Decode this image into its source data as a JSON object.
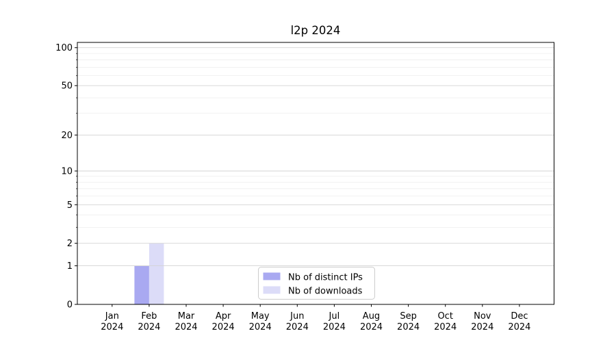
{
  "chart_data": {
    "type": "bar",
    "title": "l2p 2024",
    "months": [
      "Jan",
      "Feb",
      "Mar",
      "Apr",
      "May",
      "Jun",
      "Jul",
      "Aug",
      "Sep",
      "Oct",
      "Nov",
      "Dec"
    ],
    "year": "2024",
    "series": [
      {
        "name": "Nb of distinct IPs",
        "color": "#a9a9f1",
        "values": [
          0,
          1,
          0,
          0,
          0,
          0,
          0,
          0,
          0,
          0,
          0,
          0
        ]
      },
      {
        "name": "Nb of downloads",
        "color": "#dcdcf8",
        "values": [
          0,
          2,
          0,
          0,
          0,
          0,
          0,
          0,
          0,
          0,
          0,
          0
        ]
      }
    ],
    "y_scale": "log10(1+y)",
    "ylim": [
      0,
      110
    ],
    "y_ticks": [
      0,
      1,
      2,
      5,
      10,
      20,
      50,
      100
    ],
    "y_minor_ticks": [
      3,
      4,
      6,
      7,
      8,
      9,
      30,
      40,
      60,
      70,
      80,
      90
    ],
    "grid": {
      "major_color": "#d3d3d3",
      "minor_color": "#ebebeb"
    },
    "axis_color": "#000000",
    "legend": {
      "position": "lower center",
      "border_color": "#cccccc",
      "background": "#ffffff"
    }
  }
}
